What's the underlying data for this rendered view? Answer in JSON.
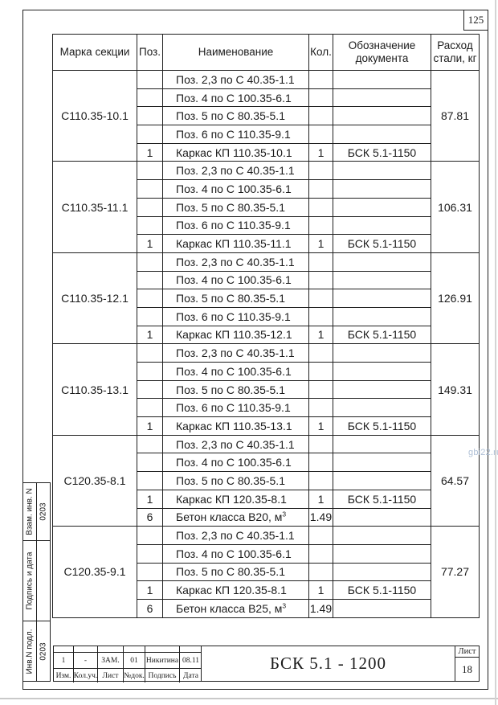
{
  "page": {
    "number": "125",
    "watermark": "gbi22.ru"
  },
  "table": {
    "headers": {
      "mark": "Марка секции",
      "pos": "Поз.",
      "name": "Наименование",
      "qty": "Кол.",
      "doc": "Обозначение документа",
      "steel": "Расход стали, кг"
    },
    "groups": [
      {
        "mark": "С110.35-10.1",
        "steel": "87.81",
        "rows": [
          {
            "pos": "",
            "name": "Поз. 2,3 по С 40.35-1.1",
            "qty": "",
            "doc": ""
          },
          {
            "pos": "",
            "name": "Поз. 4 по С 100.35-6.1",
            "qty": "",
            "doc": ""
          },
          {
            "pos": "",
            "name": "Поз. 5 по С 80.35-5.1",
            "qty": "",
            "doc": ""
          },
          {
            "pos": "",
            "name": "Поз. 6 по С 110.35-9.1",
            "qty": "",
            "doc": ""
          },
          {
            "pos": "1",
            "name": "Каркас КП 110.35-10.1",
            "qty": "1",
            "doc": "БСК 5.1-1150"
          }
        ]
      },
      {
        "mark": "С110.35-11.1",
        "steel": "106.31",
        "rows": [
          {
            "pos": "",
            "name": "Поз. 2,3 по С 40.35-1.1",
            "qty": "",
            "doc": ""
          },
          {
            "pos": "",
            "name": "Поз. 4 по С 100.35-6.1",
            "qty": "",
            "doc": ""
          },
          {
            "pos": "",
            "name": "Поз. 5 по С 80.35-5.1",
            "qty": "",
            "doc": ""
          },
          {
            "pos": "",
            "name": "Поз. 6 по С 110.35-9.1",
            "qty": "",
            "doc": ""
          },
          {
            "pos": "1",
            "name": "Каркас КП 110.35-11.1",
            "qty": "1",
            "doc": "БСК 5.1-1150"
          }
        ]
      },
      {
        "mark": "С110.35-12.1",
        "steel": "126.91",
        "rows": [
          {
            "pos": "",
            "name": "Поз. 2,3 по С 40.35-1.1",
            "qty": "",
            "doc": ""
          },
          {
            "pos": "",
            "name": "Поз. 4 по С 100.35-6.1",
            "qty": "",
            "doc": ""
          },
          {
            "pos": "",
            "name": "Поз. 5 по С 80.35-5.1",
            "qty": "",
            "doc": ""
          },
          {
            "pos": "",
            "name": "Поз. 6 по С 110.35-9.1",
            "qty": "",
            "doc": ""
          },
          {
            "pos": "1",
            "name": "Каркас КП 110.35-12.1",
            "qty": "1",
            "doc": "БСК 5.1-1150"
          }
        ]
      },
      {
        "mark": "С110.35-13.1",
        "steel": "149.31",
        "rows": [
          {
            "pos": "",
            "name": "Поз. 2,3 по С 40.35-1.1",
            "qty": "",
            "doc": ""
          },
          {
            "pos": "",
            "name": "Поз. 4 по С 100.35-6.1",
            "qty": "",
            "doc": ""
          },
          {
            "pos": "",
            "name": "Поз. 5 по С 80.35-5.1",
            "qty": "",
            "doc": ""
          },
          {
            "pos": "",
            "name": "Поз. 6 по С 110.35-9.1",
            "qty": "",
            "doc": ""
          },
          {
            "pos": "1",
            "name": "Каркас КП 110.35-13.1",
            "qty": "1",
            "doc": "БСК 5.1-1150"
          }
        ]
      },
      {
        "mark": "С120.35-8.1",
        "steel": "64.57",
        "rows": [
          {
            "pos": "",
            "name": "Поз. 2,3 по С 40.35-1.1",
            "qty": "",
            "doc": ""
          },
          {
            "pos": "",
            "name": "Поз. 4 по С 100.35-6.1",
            "qty": "",
            "doc": ""
          },
          {
            "pos": "",
            "name": "Поз. 5 по С 80.35-5.1",
            "qty": "",
            "doc": ""
          },
          {
            "pos": "1",
            "name": "Каркас КП 120.35-8.1",
            "qty": "1",
            "doc": "БСК 5.1-1150"
          },
          {
            "pos": "6",
            "name": "Бетон класса В20, м",
            "sup": "3",
            "qty": "1.49",
            "doc": ""
          }
        ]
      },
      {
        "mark": "С120.35-9.1",
        "steel": "77.27",
        "rows": [
          {
            "pos": "",
            "name": "Поз. 2,3 по С 40.35-1.1",
            "qty": "",
            "doc": ""
          },
          {
            "pos": "",
            "name": "Поз. 4 по С 100.35-6.1",
            "qty": "",
            "doc": ""
          },
          {
            "pos": "",
            "name": "Поз. 5 по С 80.35-5.1",
            "qty": "",
            "doc": ""
          },
          {
            "pos": "1",
            "name": "Каркас КП 120.35-8.1",
            "qty": "1",
            "doc": "БСК 5.1-1150"
          },
          {
            "pos": "6",
            "name": "Бетон класса В25, м",
            "sup": "3",
            "qty": "1.49",
            "doc": ""
          }
        ]
      }
    ]
  },
  "sidebar": {
    "sections": [
      {
        "label": "Взам. инв. N",
        "value": "0203"
      },
      {
        "label": "Подпись и дата",
        "value": ""
      },
      {
        "label": "Инв.N подл.",
        "value": "0203"
      }
    ]
  },
  "title_block": {
    "revision": [
      "1",
      "-",
      "ЗАМ.",
      "01",
      "Никитина",
      "08.11"
    ],
    "columns": [
      "Изм.",
      "Кол.уч.",
      "Лист",
      "№док.",
      "Подпись",
      "Дата"
    ],
    "doc_number": "БСК 5.1 - 1200",
    "sheet_label": "Лист",
    "sheet_number": "18"
  }
}
